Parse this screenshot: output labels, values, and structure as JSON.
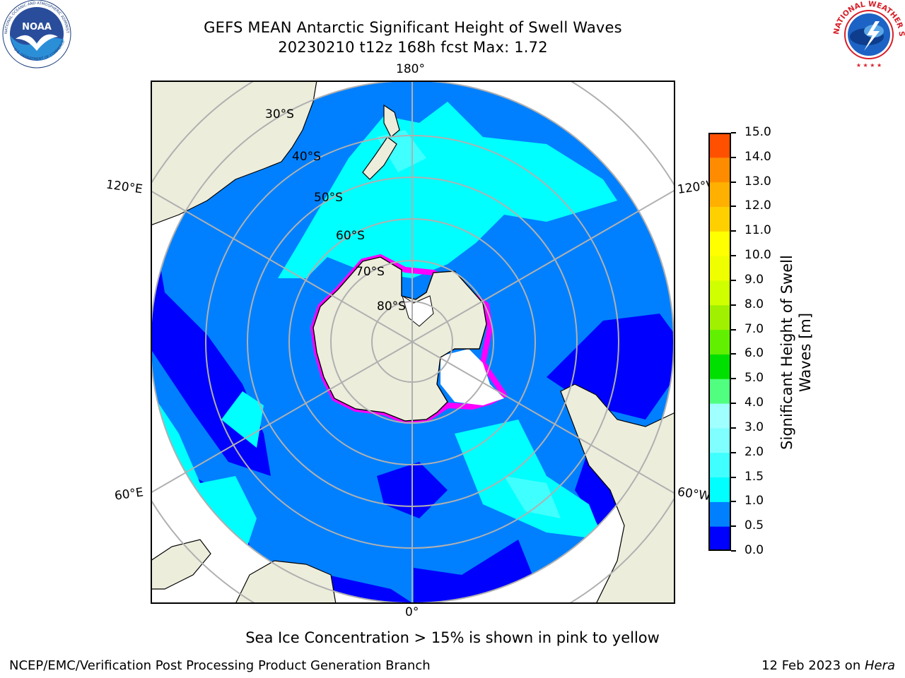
{
  "header": {
    "title_line1": "GEFS MEAN Antarctic Significant Height of Swell Waves",
    "title_line2": "20230210 t12z 168h fcst   Max: 1.72"
  },
  "logos": {
    "left": {
      "name": "noaa-logo",
      "text": "NOAA",
      "ring_text": "NATIONAL OCEANIC AND ATMOSPHERIC ADMINISTRATION · U.S. DEPARTMENT OF COMMERCE",
      "color": "#0e4a9c"
    },
    "right": {
      "name": "nws-logo",
      "ring_text": "NATIONAL WEATHER SERVICE",
      "color": "#d6202a"
    }
  },
  "map": {
    "projection": "south-polar-stereographic",
    "longitude_labels": {
      "top": "180°",
      "left_upper": "120°E",
      "right_upper": "120°W",
      "left_lower": "60°E",
      "right_lower": "60°W",
      "bottom": "0°"
    },
    "latitude_labels": [
      "30°S",
      "40°S",
      "50°S",
      "60°S",
      "70°S",
      "80°S"
    ],
    "colors": {
      "land": "#ededdc",
      "ocean_0_0_5": "#0000ff",
      "ocean_0_5_1_0": "#0080ff",
      "ocean_1_0_1_5": "#00ffff",
      "ocean_1_5_2_0": "#40ffff",
      "ice_edge": "#ff00ff",
      "grid": "#b0b0b0"
    }
  },
  "colorbar": {
    "label_line1": "Significant Height of Swell",
    "label_line2": "Waves [m]",
    "ticks": [
      "0.0",
      "0.5",
      "1.0",
      "1.5",
      "2.0",
      "3.0",
      "4.0",
      "5.0",
      "6.0",
      "7.0",
      "8.0",
      "9.0",
      "10.0",
      "11.0",
      "12.0",
      "13.0",
      "14.0",
      "15.0"
    ],
    "colors": [
      "#0000ff",
      "#0080ff",
      "#00ffff",
      "#40ffff",
      "#7fffff",
      "#a0ffff",
      "#50ff80",
      "#00e000",
      "#60f000",
      "#a0f000",
      "#d0ff00",
      "#f0ff00",
      "#ffff00",
      "#ffd000",
      "#ffb000",
      "#ff8c00",
      "#ff5000",
      "#ff2000",
      "#ff0000"
    ]
  },
  "note": "Sea Ice Concentration > 15% is shown in pink to yellow",
  "footer": {
    "left": "NCEP/EMC/Verification Post Processing Product Generation Branch",
    "right_date": "12 Feb 2023 on ",
    "right_host": "Hera"
  }
}
